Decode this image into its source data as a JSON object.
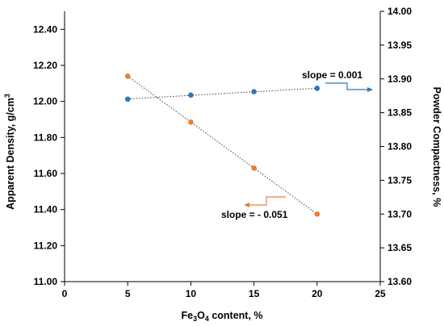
{
  "chart_data": {
    "type": "scatter",
    "x_axis": {
      "label_parts": [
        "Fe",
        "3",
        "O",
        "4",
        " content, %"
      ],
      "range": [
        0,
        25
      ],
      "ticks": [
        0,
        5,
        10,
        15,
        20,
        25
      ],
      "tick_labels": [
        "0",
        "5",
        "10",
        "15",
        "20",
        "25"
      ]
    },
    "y_left": {
      "label_parts": [
        "Apparent Density, g/cm",
        "3"
      ],
      "range": [
        11.0,
        12.5
      ],
      "ticks": [
        11.0,
        11.2,
        11.4,
        11.6,
        11.8,
        12.0,
        12.2,
        12.4
      ],
      "tick_labels": [
        "11.00",
        "11.20",
        "11.40",
        "11.60",
        "11.80",
        "12.00",
        "12.20",
        "12.40"
      ]
    },
    "y_right": {
      "label": "Powder Compactness, %",
      "range": [
        13.6,
        14.0
      ],
      "ticks": [
        13.6,
        13.65,
        13.7,
        13.75,
        13.8,
        13.85,
        13.9,
        13.95,
        14.0
      ],
      "tick_labels": [
        "13.60",
        "13.65",
        "13.70",
        "13.75",
        "13.80",
        "13.85",
        "13.90",
        "13.95",
        "14.00"
      ]
    },
    "series": [
      {
        "axis": "left",
        "color": "#ED7D31",
        "x": [
          5,
          10,
          15,
          20
        ],
        "y": [
          12.14,
          11.885,
          11.63,
          11.375
        ],
        "trendline": "linear",
        "annotation": "slope = - 0.051"
      },
      {
        "axis": "right",
        "color": "#2E75B6",
        "x": [
          5,
          10,
          15,
          20
        ],
        "y": [
          13.87,
          13.876,
          13.881,
          13.886
        ],
        "trendline": "linear",
        "annotation": "slope = 0.001"
      }
    ],
    "grid": false,
    "legend": "none"
  }
}
